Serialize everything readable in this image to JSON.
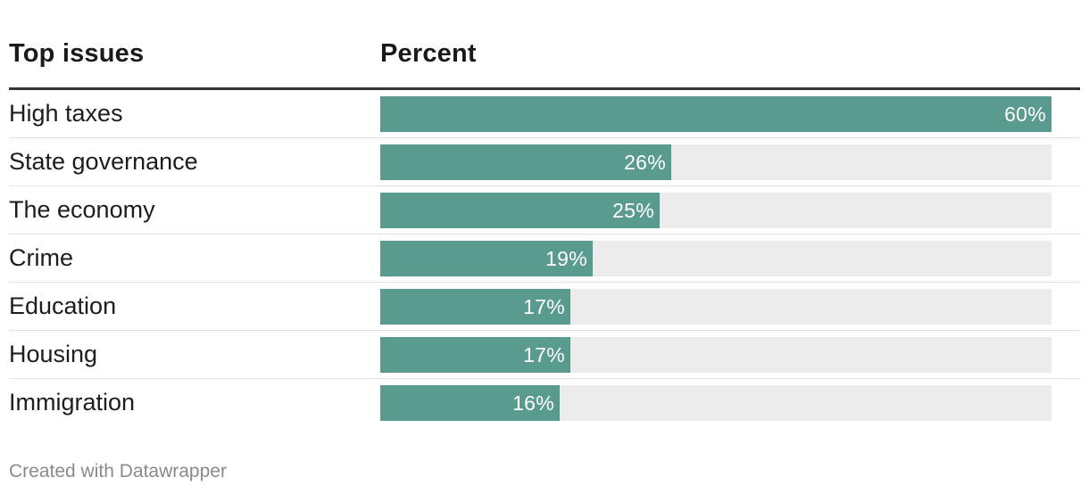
{
  "table": {
    "col_issue": "Top issues",
    "col_percent": "Percent"
  },
  "chart_data": {
    "type": "bar",
    "orientation": "horizontal",
    "categories": [
      "High taxes",
      "State governance",
      "The economy",
      "Crime",
      "Education",
      "Housing",
      "Immigration"
    ],
    "values": [
      60,
      26,
      25,
      19,
      17,
      17,
      16
    ],
    "value_labels": [
      "60%",
      "26%",
      "25%",
      "19%",
      "17%",
      "17%",
      "16%"
    ],
    "xlim": [
      0,
      60
    ],
    "bar_color": "#5a9b90",
    "track_color": "#ececec"
  },
  "footer": {
    "credit": "Created with Datawrapper"
  }
}
